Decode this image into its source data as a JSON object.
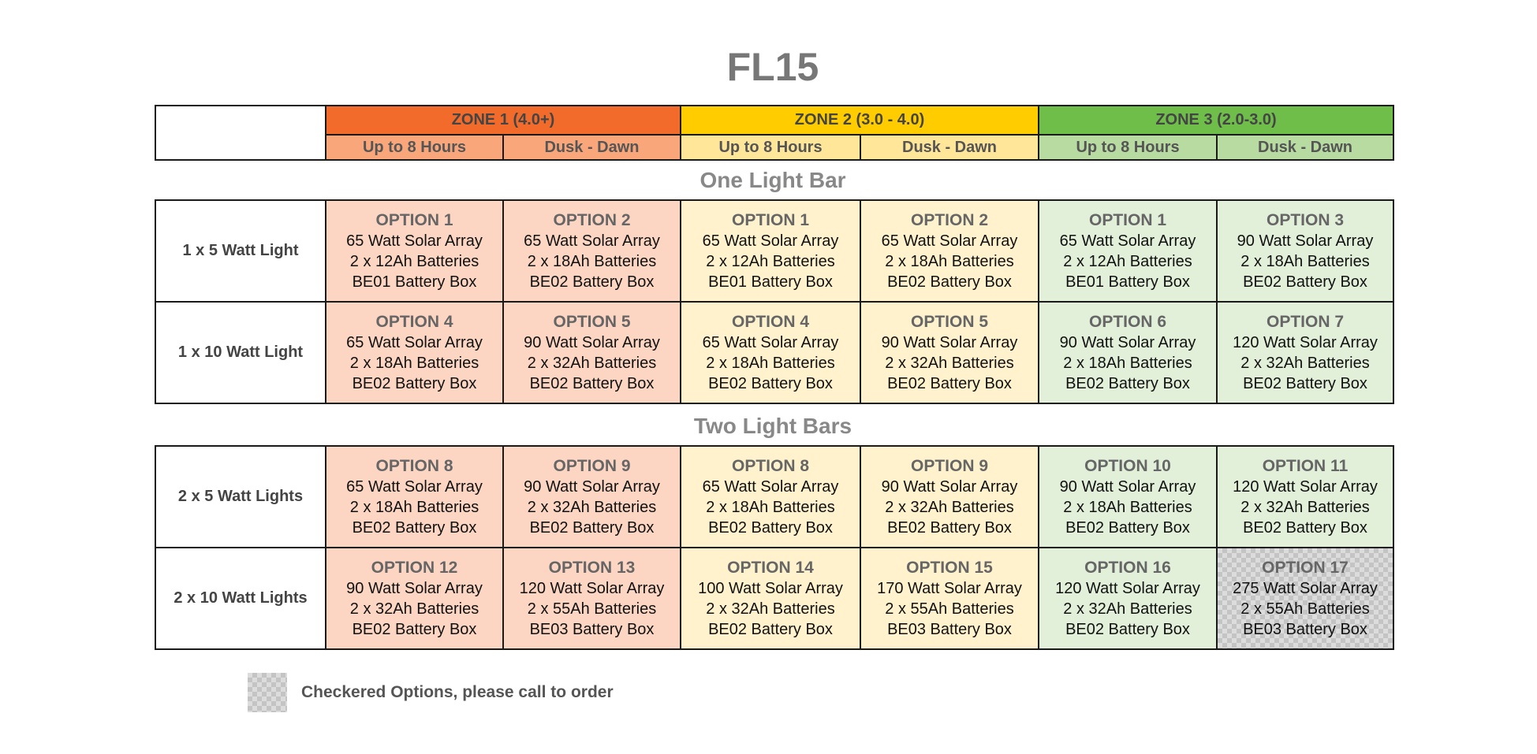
{
  "title": "FL15",
  "zones": [
    {
      "label": "ZONE 1 (4.0+)",
      "color": "#f26b2a",
      "sub_color": "#f9a77a",
      "cell_color": "#fdd6c3"
    },
    {
      "label": "ZONE 2 (3.0 - 4.0)",
      "color": "#ffcc00",
      "sub_color": "#ffe699",
      "cell_color": "#fff2cc"
    },
    {
      "label": "ZONE 3 (2.0-3.0)",
      "color": "#6fbe4a",
      "sub_color": "#b7dba0",
      "cell_color": "#e2efd9"
    }
  ],
  "subheaders": [
    "Up to 8 Hours",
    "Dusk - Dawn",
    "Up to 8 Hours",
    "Dusk - Dawn",
    "Up to 8 Hours",
    "Dusk - Dawn"
  ],
  "sections": [
    {
      "title": "One Light Bar",
      "rows": [
        {
          "label": "1 x 5 Watt Light",
          "cells": [
            {
              "option": "OPTION 1",
              "array": "65 Watt Solar Array",
              "batteries": "2 x 12Ah Batteries",
              "box": "BE01 Battery Box"
            },
            {
              "option": "OPTION 2",
              "array": "65 Watt Solar Array",
              "batteries": "2 x 18Ah Batteries",
              "box": "BE02 Battery Box"
            },
            {
              "option": "OPTION 1",
              "array": "65 Watt Solar Array",
              "batteries": "2 x 12Ah Batteries",
              "box": "BE01 Battery Box"
            },
            {
              "option": "OPTION 2",
              "array": "65 Watt Solar Array",
              "batteries": "2 x 18Ah Batteries",
              "box": "BE02 Battery Box"
            },
            {
              "option": "OPTION 1",
              "array": "65 Watt Solar Array",
              "batteries": "2 x 12Ah Batteries",
              "box": "BE01 Battery Box"
            },
            {
              "option": "OPTION 3",
              "array": "90 Watt Solar Array",
              "batteries": "2 x 18Ah Batteries",
              "box": "BE02 Battery Box"
            }
          ]
        },
        {
          "label": "1 x 10 Watt Light",
          "cells": [
            {
              "option": "OPTION 4",
              "array": "65 Watt Solar Array",
              "batteries": "2 x 18Ah Batteries",
              "box": "BE02 Battery Box"
            },
            {
              "option": "OPTION 5",
              "array": "90 Watt Solar Array",
              "batteries": "2 x 32Ah Batteries",
              "box": "BE02 Battery Box"
            },
            {
              "option": "OPTION 4",
              "array": "65 Watt Solar Array",
              "batteries": "2 x 18Ah Batteries",
              "box": "BE02 Battery Box"
            },
            {
              "option": "OPTION 5",
              "array": "90 Watt Solar Array",
              "batteries": "2 x 32Ah Batteries",
              "box": "BE02 Battery Box"
            },
            {
              "option": "OPTION 6",
              "array": "90 Watt Solar Array",
              "batteries": "2 x 18Ah Batteries",
              "box": "BE02 Battery Box"
            },
            {
              "option": "OPTION 7",
              "array": "120 Watt Solar Array",
              "batteries": "2 x 32Ah Batteries",
              "box": "BE02 Battery Box"
            }
          ]
        }
      ]
    },
    {
      "title": "Two Light Bars",
      "rows": [
        {
          "label": "2 x 5 Watt Lights",
          "cells": [
            {
              "option": "OPTION 8",
              "array": "65 Watt Solar Array",
              "batteries": "2 x 18Ah Batteries",
              "box": "BE02 Battery Box"
            },
            {
              "option": "OPTION 9",
              "array": "90 Watt Solar Array",
              "batteries": "2 x 32Ah Batteries",
              "box": "BE02 Battery Box"
            },
            {
              "option": "OPTION 8",
              "array": "65 Watt Solar Array",
              "batteries": "2 x 18Ah Batteries",
              "box": "BE02 Battery Box"
            },
            {
              "option": "OPTION 9",
              "array": "90 Watt Solar Array",
              "batteries": "2 x 32Ah Batteries",
              "box": "BE02 Battery Box"
            },
            {
              "option": "OPTION 10",
              "array": "90 Watt Solar Array",
              "batteries": "2 x 18Ah Batteries",
              "box": "BE02 Battery Box"
            },
            {
              "option": "OPTION 11",
              "array": "120 Watt Solar Array",
              "batteries": "2 x 32Ah Batteries",
              "box": "BE02 Battery Box"
            }
          ]
        },
        {
          "label": "2 x 10 Watt Lights",
          "cells": [
            {
              "option": "OPTION 12",
              "array": "90 Watt Solar Array",
              "batteries": "2 x 32Ah Batteries",
              "box": "BE02 Battery Box"
            },
            {
              "option": "OPTION 13",
              "array": "120 Watt Solar Array",
              "batteries": "2 x 55Ah Batteries",
              "box": "BE03 Battery Box"
            },
            {
              "option": "OPTION 14",
              "array": "100 Watt Solar Array",
              "batteries": "2 x 32Ah Batteries",
              "box": "BE02 Battery Box"
            },
            {
              "option": "OPTION 15",
              "array": "170 Watt Solar Array",
              "batteries": "2 x 55Ah Batteries",
              "box": "BE03 Battery Box"
            },
            {
              "option": "OPTION 16",
              "array": "120 Watt Solar Array",
              "batteries": "2 x 32Ah Batteries",
              "box": "BE02 Battery Box"
            },
            {
              "option": "OPTION 17",
              "array": "275 Watt Solar Array",
              "batteries": "2 x 55Ah Batteries",
              "box": "BE03 Battery Box",
              "checkered": true
            }
          ]
        }
      ]
    }
  ],
  "legend": {
    "text": "Checkered Options, please call to order"
  }
}
